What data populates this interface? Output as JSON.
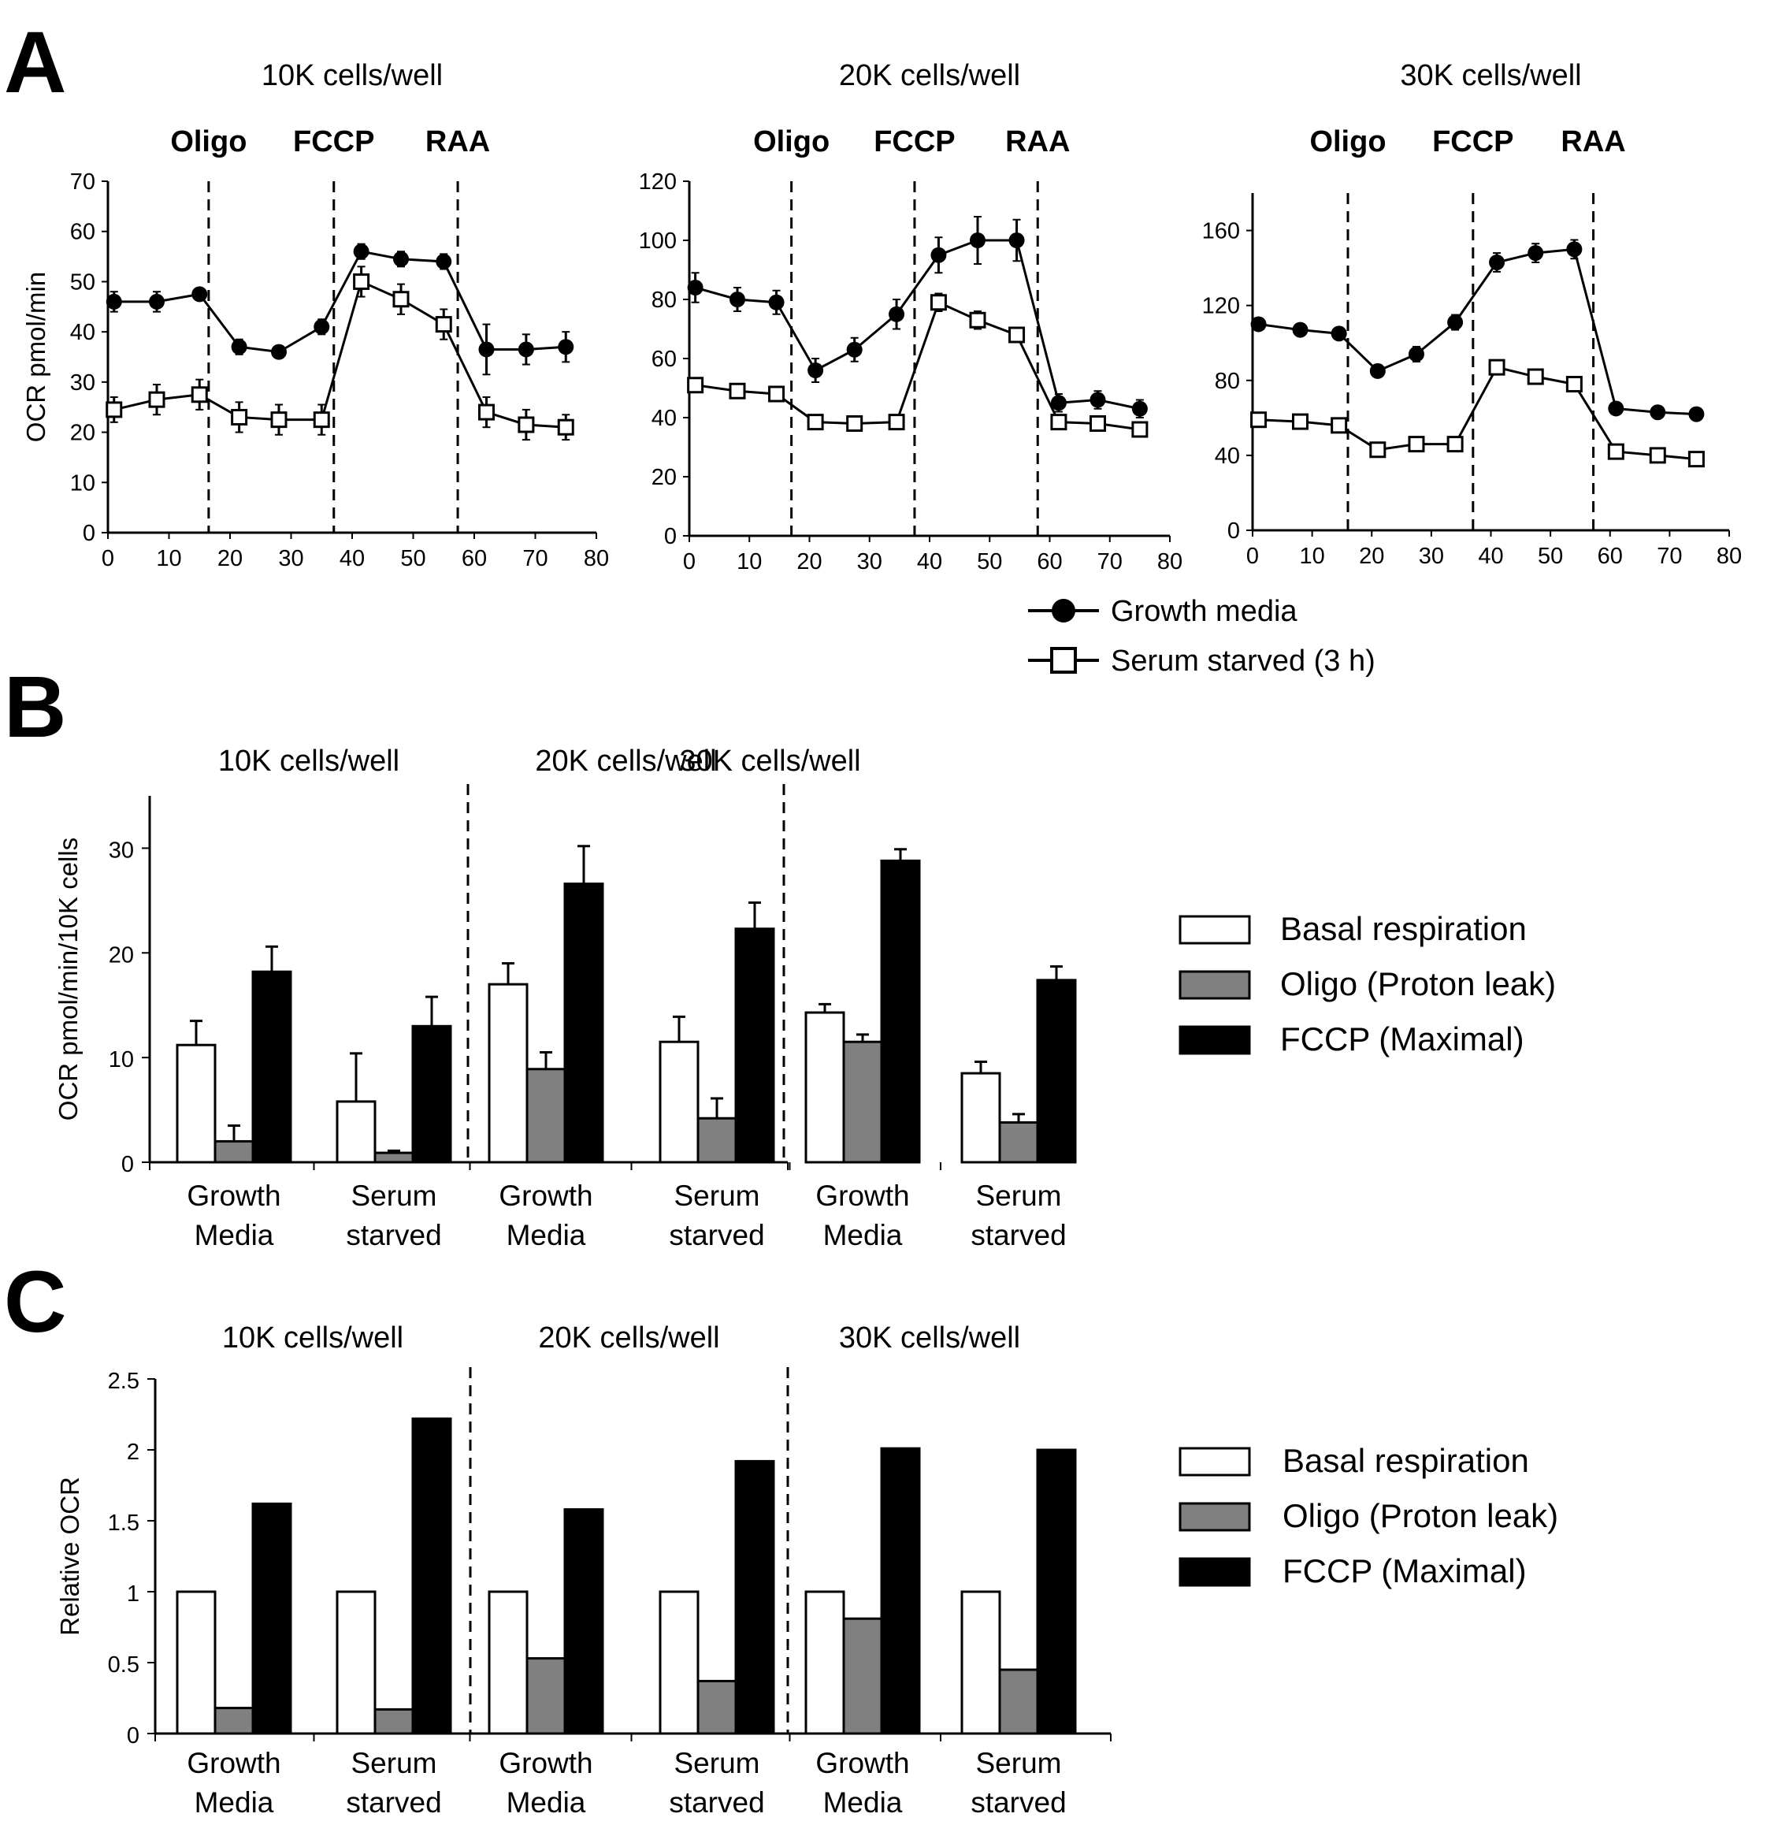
{
  "panels": {
    "a": "A",
    "b": "B",
    "c": "C"
  },
  "colors": {
    "ink": "#000000",
    "growth_fill": "#000000",
    "starved_fill": "#ffffff",
    "basal": "#ffffff",
    "oligo": "#808080",
    "fccp": "#000000"
  },
  "legend_a": {
    "growth": "Growth media",
    "starved": "Serum starved (3 h)"
  },
  "legend_bars": {
    "basal": "Basal respiration",
    "oligo": "Oligo (Proton leak)",
    "fccp": "FCCP (Maximal)"
  },
  "chart_data": [
    {
      "id": "A1",
      "type": "line",
      "title": "10K cells/well",
      "ylabel": "OCR pmol/min",
      "xlim": [
        0,
        80
      ],
      "ylim": [
        0,
        70
      ],
      "xticks": [
        0,
        10,
        20,
        30,
        40,
        50,
        60,
        70,
        80
      ],
      "yticks": [
        0,
        10,
        20,
        30,
        40,
        50,
        60,
        70
      ],
      "injections": [
        {
          "label": "Oligo",
          "x": 16.5
        },
        {
          "label": "FCCP",
          "x": 37
        },
        {
          "label": "RAA",
          "x": 57.3
        }
      ],
      "x": [
        1,
        8,
        15,
        21.5,
        28,
        35,
        41.5,
        48,
        55,
        62,
        68.5,
        75
      ],
      "series": [
        {
          "name": "Growth media",
          "values": [
            46,
            46,
            47.5,
            37,
            36,
            41,
            56,
            54.5,
            54,
            36.5,
            36.5,
            37
          ],
          "errors": [
            2,
            2,
            1,
            1.5,
            1,
            1.5,
            1.5,
            1.5,
            1.5,
            5,
            3,
            3
          ]
        },
        {
          "name": "Serum starved (3 h)",
          "values": [
            24.5,
            26.5,
            27.5,
            23,
            22.5,
            22.5,
            50,
            46.5,
            41.5,
            24,
            21.5,
            21
          ],
          "errors": [
            2.5,
            3,
            3,
            3,
            3,
            3,
            3,
            3,
            3,
            3,
            3,
            2.5
          ]
        }
      ]
    },
    {
      "id": "A2",
      "type": "line",
      "title": "20K cells/well",
      "ylabel": "",
      "xlim": [
        0,
        80
      ],
      "ylim": [
        0,
        120
      ],
      "xticks": [
        0,
        10,
        20,
        30,
        40,
        50,
        60,
        70,
        80
      ],
      "yticks": [
        0,
        20,
        40,
        60,
        80,
        100,
        120
      ],
      "injections": [
        {
          "label": "Oligo",
          "x": 17
        },
        {
          "label": "FCCP",
          "x": 37.5
        },
        {
          "label": "RAA",
          "x": 58
        }
      ],
      "x": [
        1,
        8,
        14.5,
        21,
        27.5,
        34.5,
        41.5,
        48,
        54.5,
        61.5,
        68,
        75
      ],
      "series": [
        {
          "name": "Growth media",
          "values": [
            84,
            80,
            79,
            56,
            63,
            75,
            95,
            100,
            100,
            45,
            46,
            43
          ],
          "errors": [
            5,
            4,
            4,
            4,
            4,
            5,
            6,
            8,
            7,
            3,
            3,
            3
          ]
        },
        {
          "name": "Serum starved (3 h)",
          "values": [
            51,
            49,
            48,
            38.5,
            38,
            38.5,
            79,
            73,
            68,
            38.5,
            38,
            36
          ],
          "errors": [
            2,
            2,
            2,
            1.5,
            1.5,
            1.5,
            3,
            3,
            2,
            1.5,
            1.5,
            1.5
          ]
        }
      ]
    },
    {
      "id": "A3",
      "type": "line",
      "title": "30K cells/well",
      "ylabel": "",
      "xlim": [
        0,
        80
      ],
      "ylim": [
        0,
        180
      ],
      "xticks": [
        0,
        10,
        20,
        30,
        40,
        50,
        60,
        70,
        80
      ],
      "yticks": [
        0,
        40,
        80,
        120,
        160
      ],
      "injections": [
        {
          "label": "Oligo",
          "x": 16
        },
        {
          "label": "FCCP",
          "x": 37
        },
        {
          "label": "RAA",
          "x": 57.2
        }
      ],
      "x": [
        1,
        8,
        14.5,
        21,
        27.5,
        34,
        41,
        47.5,
        54,
        61,
        68,
        74.5
      ],
      "series": [
        {
          "name": "Growth media",
          "values": [
            110,
            107,
            105,
            85,
            94,
            111,
            143,
            148,
            150,
            65,
            63,
            62
          ],
          "errors": [
            3,
            3,
            3,
            2,
            4,
            4,
            5,
            5,
            5,
            2,
            2,
            2
          ]
        },
        {
          "name": "Serum starved (3 h)",
          "values": [
            59,
            58,
            56,
            43,
            46,
            46,
            87,
            82,
            78,
            42,
            40,
            38
          ],
          "errors": [
            2,
            2,
            2,
            2,
            2,
            2,
            3,
            3,
            2,
            2,
            2,
            2
          ]
        }
      ]
    },
    {
      "id": "B",
      "type": "bar",
      "ylabel": "OCR pmol/min/10K cells",
      "ylim": [
        0,
        35
      ],
      "yticks": [
        0,
        10,
        20,
        30
      ],
      "group_titles": [
        "10K cells/well",
        "20K cells/well",
        "30K cells/well"
      ],
      "categories": [
        "Growth Media",
        "Serum starved",
        "Growth Media",
        "Serum starved",
        "Growth Media",
        "Serum starved"
      ],
      "category_lines": [
        [
          "Growth",
          "Media"
        ],
        [
          "Serum",
          "starved"
        ],
        [
          "Growth",
          "Media"
        ],
        [
          "Serum",
          "starved"
        ],
        [
          "Growth",
          "Media"
        ],
        [
          "Serum",
          "starved"
        ]
      ],
      "series": [
        {
          "name": "Basal respiration",
          "values": [
            11.2,
            5.8,
            17,
            11.5,
            14.3,
            8.5
          ],
          "errors": [
            2.3,
            4.6,
            2,
            2.4,
            0.8,
            1.1
          ]
        },
        {
          "name": "Oligo (Proton leak)",
          "values": [
            2,
            0.9,
            8.9,
            4.2,
            11.5,
            3.8
          ],
          "errors": [
            1.5,
            0.2,
            1.6,
            1.9,
            0.7,
            0.8
          ]
        },
        {
          "name": "FCCP (Maximal)",
          "values": [
            18.2,
            13,
            26.6,
            22.3,
            28.8,
            17.4
          ],
          "errors": [
            2.4,
            2.8,
            3.6,
            2.5,
            1.1,
            1.3
          ]
        }
      ]
    },
    {
      "id": "C",
      "type": "bar",
      "ylabel": "Relative OCR",
      "ylim": [
        0,
        2.5
      ],
      "yticks": [
        0,
        0.5,
        1,
        1.5,
        2,
        2.5
      ],
      "group_titles": [
        "10K cells/well",
        "20K cells/well",
        "30K cells/well"
      ],
      "categories": [
        "Growth Media",
        "Serum starved",
        "Growth Media",
        "Serum starved",
        "Growth Media",
        "Serum starved"
      ],
      "category_lines": [
        [
          "Growth",
          "Media"
        ],
        [
          "Serum",
          "starved"
        ],
        [
          "Growth",
          "Media"
        ],
        [
          "Serum",
          "starved"
        ],
        [
          "Growth",
          "Media"
        ],
        [
          "Serum",
          "starved"
        ]
      ],
      "series": [
        {
          "name": "Basal respiration",
          "values": [
            1,
            1,
            1,
            1,
            1,
            1
          ]
        },
        {
          "name": "Oligo (Proton leak)",
          "values": [
            0.18,
            0.17,
            0.53,
            0.37,
            0.81,
            0.45
          ]
        },
        {
          "name": "FCCP (Maximal)",
          "values": [
            1.62,
            2.22,
            1.58,
            1.92,
            2.01,
            2.0
          ]
        }
      ]
    }
  ]
}
